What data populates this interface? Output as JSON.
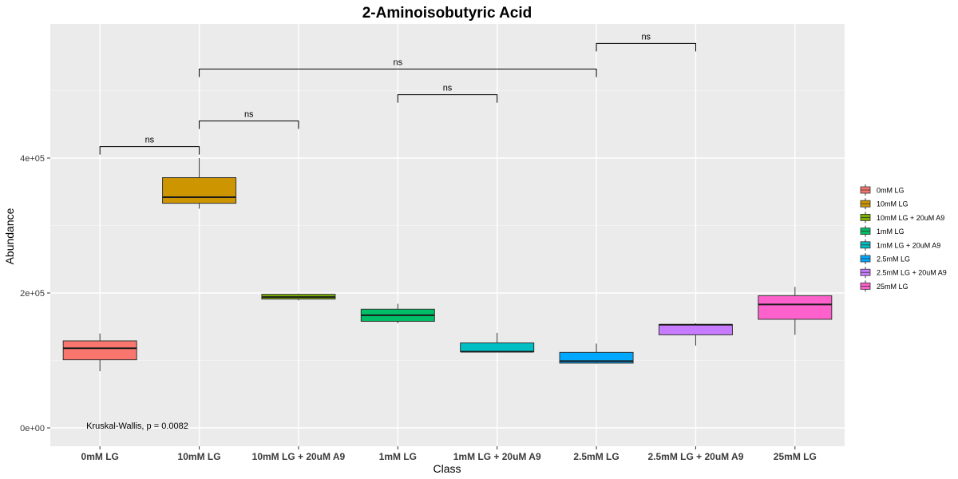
{
  "chart_data": {
    "type": "box",
    "title": "2-Aminoisobutyric Acid",
    "xlabel": "Class",
    "ylabel": "Abundance",
    "ylim": [
      -30000,
      600000
    ],
    "y_ticks": [
      0,
      200000,
      400000
    ],
    "y_tick_labels": [
      "0e+00",
      "2e+05",
      "4e+05"
    ],
    "grid": true,
    "legend_position": "right",
    "categories": [
      "0mM LG",
      "10mM LG",
      "10mM LG + 20uM A9",
      "1mM LG",
      "1mM LG + 20uM A9",
      "2.5mM LG",
      "2.5mM LG + 20uM A9",
      "25mM LG"
    ],
    "series": [
      {
        "name": "0mM LG",
        "color": "#F8766D",
        "min": 84000,
        "q1": 101000,
        "median": 118000,
        "q3": 129000,
        "max": 140000
      },
      {
        "name": "10mM LG",
        "color": "#CD9600",
        "min": 325000,
        "q1": 333000,
        "median": 342000,
        "q3": 371000,
        "max": 400000
      },
      {
        "name": "10mM LG + 20uM A9",
        "color": "#7CAE00",
        "min": 189000,
        "q1": 191000,
        "median": 194000,
        "q3": 198000,
        "max": 199000
      },
      {
        "name": "1mM LG",
        "color": "#00BE67",
        "min": 155000,
        "q1": 158000,
        "median": 167000,
        "q3": 176000,
        "max": 184000
      },
      {
        "name": "1mM LG + 20uM A9",
        "color": "#00BFC4",
        "min": 113000,
        "q1": 113000,
        "median": 113000,
        "q3": 126000,
        "max": 141000
      },
      {
        "name": "2.5mM LG",
        "color": "#00A9FF",
        "min": 95000,
        "q1": 96000,
        "median": 99000,
        "q3": 112000,
        "max": 125000
      },
      {
        "name": "2.5mM LG + 20uM A9",
        "color": "#C77CFF",
        "min": 122000,
        "q1": 138000,
        "median": 153000,
        "q3": 153000,
        "max": 155000
      },
      {
        "name": "25mM LG",
        "color": "#FF61CC",
        "min": 138000,
        "q1": 161000,
        "median": 183000,
        "q3": 196000,
        "max": 209000
      }
    ],
    "comparisons": [
      {
        "from": 0,
        "to": 1,
        "y": 417000,
        "label": "ns"
      },
      {
        "from": 1,
        "to": 2,
        "y": 455000,
        "label": "ns"
      },
      {
        "from": 3,
        "to": 4,
        "y": 494000,
        "label": "ns"
      },
      {
        "from": 1,
        "to": 5,
        "y": 532000,
        "label": "ns"
      },
      {
        "from": 5,
        "to": 6,
        "y": 570000,
        "label": "ns"
      }
    ],
    "annotation": "Kruskal-Wallis, p = 0.0082"
  },
  "colors": {
    "panel_background": "#EBEBEB",
    "grid_major": "#FFFFFF",
    "grid_minor": "#F5F5F5"
  }
}
